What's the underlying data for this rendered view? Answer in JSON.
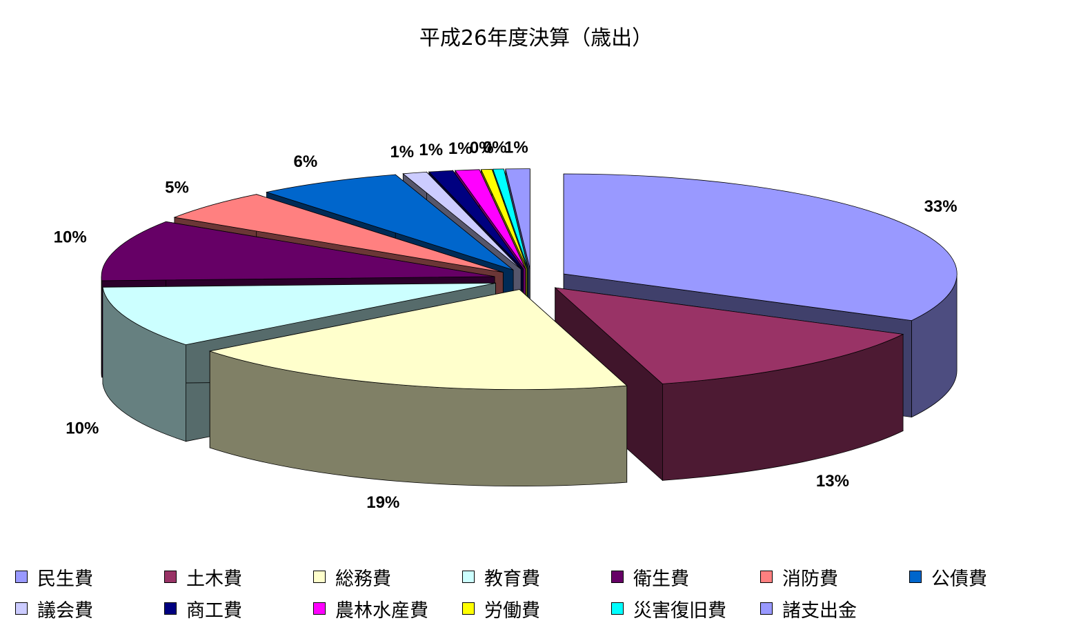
{
  "chart_data": {
    "type": "pie",
    "title": "平成26年度決算（歳出）",
    "categories": [
      "民生費",
      "土木費",
      "総務費",
      "教育費",
      "衛生費",
      "消防費",
      "公債費",
      "議会費",
      "商工費",
      "農林水産費",
      "労働費",
      "災害復旧費",
      "諸支出金"
    ],
    "values": [
      33,
      13,
      19,
      10,
      10,
      5,
      6,
      1,
      1,
      1,
      0,
      0,
      1
    ],
    "data_labels": [
      "33%",
      "13%",
      "19%",
      "10%",
      "10%",
      "5%",
      "6%",
      "1%",
      "1%",
      "1%",
      "0%",
      "0%",
      "1%"
    ],
    "colors": [
      "#9999ff",
      "#993366",
      "#ffffcc",
      "#ccffff",
      "#660066",
      "#ff8080",
      "#0066cc",
      "#ccccff",
      "#000080",
      "#ff00ff",
      "#ffff00",
      "#00ffff",
      "#9999ff"
    ],
    "exploded": true,
    "three_d": true,
    "legend_position": "bottom"
  }
}
